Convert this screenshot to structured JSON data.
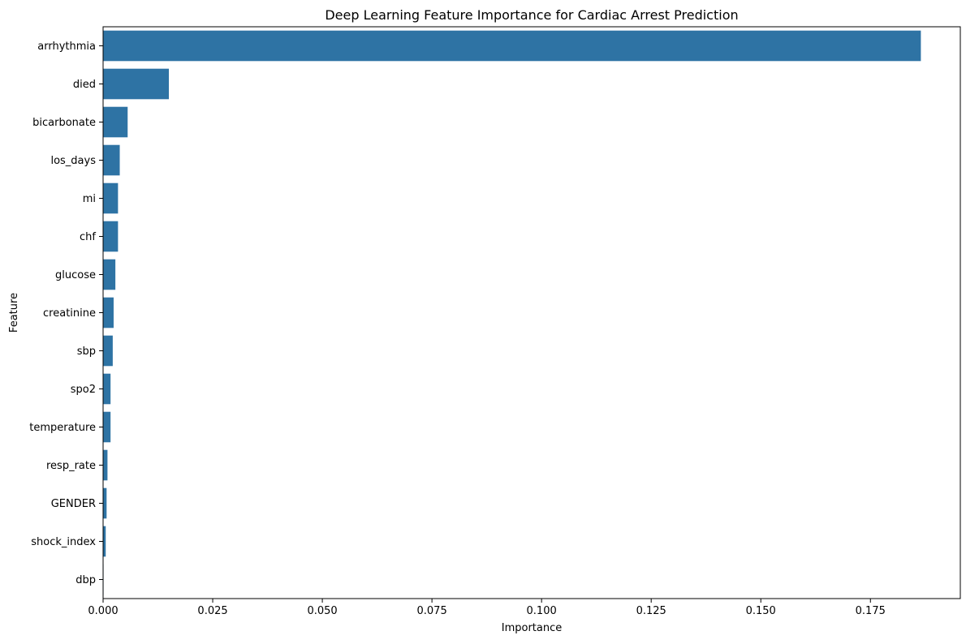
{
  "chart_data": {
    "type": "bar",
    "orientation": "horizontal",
    "title": "Deep Learning Feature Importance for Cardiac Arrest Prediction",
    "xlabel": "Importance",
    "ylabel": "Feature",
    "xlim": [
      0,
      0.1955
    ],
    "x_ticks": [
      "0.000",
      "0.025",
      "0.050",
      "0.075",
      "0.100",
      "0.125",
      "0.150",
      "0.175"
    ],
    "bar_color": "#2e73a4",
    "grid": false,
    "categories": [
      "arrhythmia",
      "died",
      "bicarbonate",
      "los_days",
      "mi",
      "chf",
      "glucose",
      "creatinine",
      "sbp",
      "spo2",
      "temperature",
      "resp_rate",
      "GENDER",
      "shock_index",
      "dbp"
    ],
    "values": [
      0.1865,
      0.015,
      0.0056,
      0.0038,
      0.0034,
      0.0034,
      0.0028,
      0.0024,
      0.0022,
      0.0017,
      0.0017,
      0.001,
      0.0008,
      0.0006,
      0.0001
    ]
  }
}
